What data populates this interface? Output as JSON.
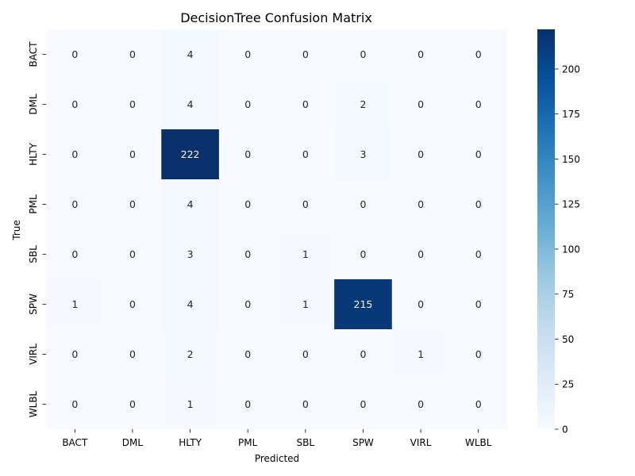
{
  "chart_data": {
    "type": "heatmap",
    "title": "DecisionTree Confusion Matrix",
    "xlabel": "Predicted",
    "ylabel": "True",
    "x_categories": [
      "BACT",
      "DML",
      "HLTY",
      "PML",
      "SBL",
      "SPW",
      "VIRL",
      "WLBL"
    ],
    "y_categories": [
      "BACT",
      "DML",
      "HLTY",
      "PML",
      "SBL",
      "SPW",
      "VIRL",
      "WLBL"
    ],
    "matrix": [
      [
        0,
        0,
        4,
        0,
        0,
        0,
        0,
        0
      ],
      [
        0,
        0,
        4,
        0,
        0,
        2,
        0,
        0
      ],
      [
        0,
        0,
        222,
        0,
        0,
        3,
        0,
        0
      ],
      [
        0,
        0,
        4,
        0,
        0,
        0,
        0,
        0
      ],
      [
        0,
        0,
        3,
        0,
        1,
        0,
        0,
        0
      ],
      [
        1,
        0,
        4,
        0,
        1,
        215,
        0,
        0
      ],
      [
        0,
        0,
        2,
        0,
        0,
        0,
        1,
        0
      ],
      [
        0,
        0,
        1,
        0,
        0,
        0,
        0,
        0
      ]
    ],
    "colormap": "Blues",
    "color_low": "#f7fbff",
    "color_high": "#08306b",
    "value_range": [
      0,
      222
    ],
    "colorbar_ticks": [
      0,
      25,
      50,
      75,
      100,
      125,
      150,
      175,
      200
    ],
    "annotation_text_dark": "#262626",
    "annotation_text_light": "#ffffff"
  }
}
